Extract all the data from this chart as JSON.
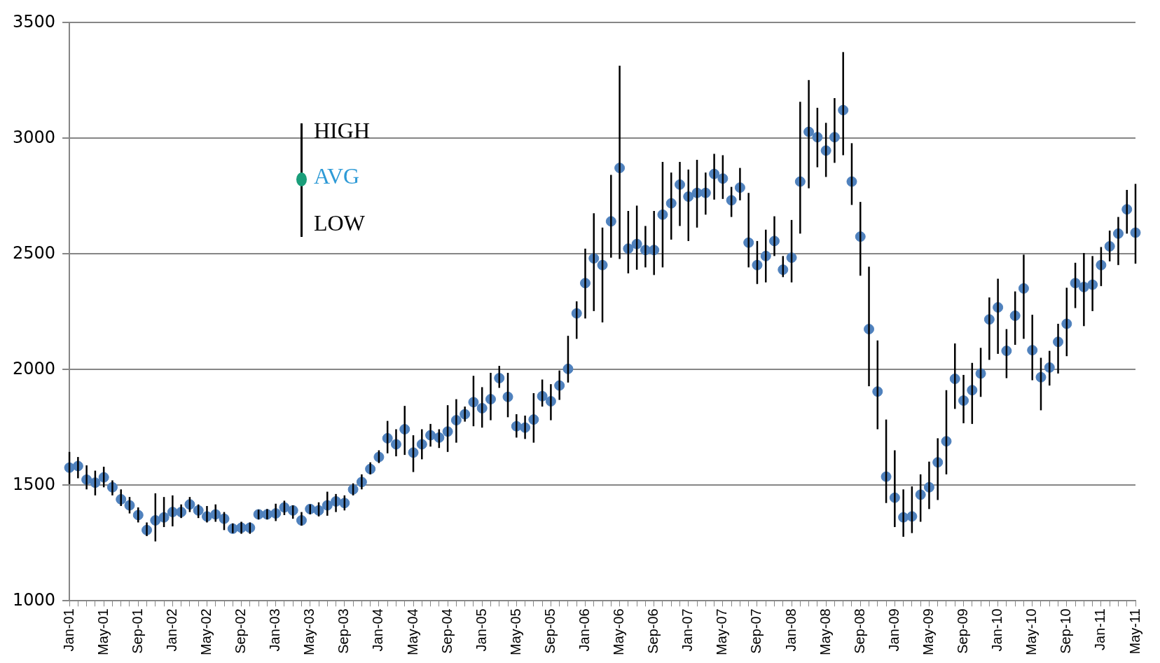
{
  "chart_data": {
    "type": "scatter",
    "ylim": [
      1000,
      3500
    ],
    "yticks": [
      1000,
      1500,
      2000,
      2500,
      3000,
      3500
    ],
    "grid": "y",
    "legend": false,
    "marker": "circle",
    "color": "#4f81bd",
    "categories": [
      "Jan-01",
      null,
      null,
      null,
      "May-01",
      null,
      null,
      null,
      "Sep-01",
      null,
      null,
      null,
      "Jan-02",
      null,
      null,
      null,
      "May-02",
      null,
      null,
      null,
      "Sep-02",
      null,
      null,
      null,
      "Jan-03",
      null,
      null,
      null,
      "May-03",
      null,
      null,
      null,
      "Sep-03",
      null,
      null,
      null,
      "Jan-04",
      null,
      null,
      null,
      "May-04",
      null,
      null,
      null,
      "Sep-04",
      null,
      null,
      null,
      "Jan-05",
      null,
      null,
      null,
      "May-05",
      null,
      null,
      null,
      "Sep-05",
      null,
      null,
      null,
      "Jan-06",
      null,
      null,
      null,
      "May-06",
      null,
      null,
      null,
      "Sep-06",
      null,
      null,
      null,
      "Jan-07",
      null,
      null,
      null,
      "May-07",
      null,
      null,
      null,
      "Sep-07",
      null,
      null,
      null,
      "Jan-08",
      null,
      null,
      null,
      "May-08",
      null,
      null,
      null,
      "Sep-08",
      null,
      null,
      null,
      "Jan-09",
      null,
      null,
      null,
      "May-09",
      null,
      null,
      null,
      "Sep-09",
      null,
      null,
      null,
      "Jan-10",
      null,
      null,
      null,
      "May-10",
      null,
      null,
      null,
      "Sep-10",
      null,
      null,
      null,
      "Jan-11",
      null,
      null,
      null,
      "May-11"
    ],
    "values": [
      1576,
      1583,
      1524,
      1511,
      1534,
      1491,
      1439,
      1413,
      1371,
      1306,
      1348,
      1361,
      1384,
      1384,
      1417,
      1391,
      1365,
      1374,
      1355,
      1312,
      1316,
      1316,
      1374,
      1374,
      1378,
      1404,
      1391,
      1348,
      1397,
      1391,
      1413,
      1430,
      1423,
      1482,
      1514,
      1570,
      1622,
      1703,
      1677,
      1742,
      1641,
      1677,
      1716,
      1706,
      1732,
      1781,
      1807,
      1859,
      1833,
      1872,
      1963,
      1882,
      1755,
      1749,
      1784,
      1885,
      1863,
      1931,
      2003,
      2243,
      2374,
      2481,
      2452,
      2641,
      2872,
      2523,
      2543,
      2517,
      2517,
      2670,
      2719,
      2800,
      2748,
      2764,
      2764,
      2846,
      2826,
      2732,
      2787,
      2549,
      2452,
      2491,
      2556,
      2432,
      2484,
      2813,
      3028,
      3005,
      2947,
      3005,
      3122,
      2813,
      2575,
      2175,
      1905,
      1537,
      1446,
      1361,
      1365,
      1459,
      1491,
      1599,
      1690,
      1960,
      1866,
      1911,
      1983,
      2217,
      2269,
      2081,
      2233,
      2351,
      2084,
      1967,
      2009,
      2120,
      2198,
      2374,
      2357,
      2367,
      2452,
      2533,
      2588,
      2693,
      2592
    ],
    "errors": [
      [
        1505,
        1644
      ],
      [
        1530,
        1622
      ],
      [
        1482,
        1586
      ],
      [
        1456,
        1563
      ],
      [
        1491,
        1580
      ],
      [
        1456,
        1521
      ],
      [
        1410,
        1482
      ],
      [
        1378,
        1449
      ],
      [
        1339,
        1404
      ],
      [
        1280,
        1339
      ],
      [
        1257,
        1465
      ],
      [
        1319,
        1449
      ],
      [
        1322,
        1456
      ],
      [
        1358,
        1417
      ],
      [
        1384,
        1449
      ],
      [
        1358,
        1417
      ],
      [
        1339,
        1410
      ],
      [
        1342,
        1417
      ],
      [
        1306,
        1384
      ],
      [
        1293,
        1335
      ],
      [
        1290,
        1342
      ],
      [
        1290,
        1339
      ],
      [
        1352,
        1394
      ],
      [
        1352,
        1397
      ],
      [
        1345,
        1420
      ],
      [
        1371,
        1433
      ],
      [
        1355,
        1413
      ],
      [
        1325,
        1384
      ],
      [
        1374,
        1417
      ],
      [
        1365,
        1426
      ],
      [
        1368,
        1472
      ],
      [
        1384,
        1462
      ],
      [
        1391,
        1456
      ],
      [
        1456,
        1508
      ],
      [
        1482,
        1547
      ],
      [
        1547,
        1599
      ],
      [
        1596,
        1651
      ],
      [
        1638,
        1778
      ],
      [
        1625,
        1742
      ],
      [
        1631,
        1843
      ],
      [
        1557,
        1716
      ],
      [
        1612,
        1742
      ],
      [
        1667,
        1765
      ],
      [
        1661,
        1742
      ],
      [
        1644,
        1846
      ],
      [
        1684,
        1872
      ],
      [
        1775,
        1840
      ],
      [
        1755,
        1973
      ],
      [
        1749,
        1924
      ],
      [
        1781,
        1986
      ],
      [
        1921,
        2016
      ],
      [
        1794,
        1986
      ],
      [
        1706,
        1807
      ],
      [
        1700,
        1801
      ],
      [
        1684,
        1898
      ],
      [
        1840,
        1957
      ],
      [
        1781,
        1937
      ],
      [
        1869,
        1996
      ],
      [
        1944,
        2146
      ],
      [
        2133,
        2295
      ],
      [
        2221,
        2523
      ],
      [
        2253,
        2676
      ],
      [
        2204,
        2614
      ],
      [
        2484,
        2842
      ],
      [
        2478,
        3314
      ],
      [
        2416,
        2686
      ],
      [
        2432,
        2709
      ],
      [
        2442,
        2621
      ],
      [
        2409,
        2686
      ],
      [
        2442,
        2898
      ],
      [
        2562,
        2852
      ],
      [
        2621,
        2898
      ],
      [
        2556,
        2865
      ],
      [
        2614,
        2907
      ],
      [
        2670,
        2852
      ],
      [
        2735,
        2933
      ],
      [
        2738,
        2927
      ],
      [
        2660,
        2790
      ],
      [
        2732,
        2872
      ],
      [
        2442,
        2764
      ],
      [
        2370,
        2556
      ],
      [
        2377,
        2605
      ],
      [
        2491,
        2663
      ],
      [
        2400,
        2491
      ],
      [
        2377,
        2647
      ],
      [
        2588,
        3158
      ],
      [
        2784,
        3252
      ],
      [
        2875,
        3132
      ],
      [
        2833,
        3067
      ],
      [
        2894,
        3174
      ],
      [
        2927,
        3373
      ],
      [
        2712,
        2979
      ],
      [
        2406,
        2725
      ],
      [
        1928,
        2445
      ],
      [
        1742,
        2126
      ],
      [
        1423,
        1784
      ],
      [
        1319,
        1651
      ],
      [
        1277,
        1482
      ],
      [
        1293,
        1495
      ],
      [
        1342,
        1547
      ],
      [
        1397,
        1602
      ],
      [
        1436,
        1703
      ],
      [
        1547,
        1911
      ],
      [
        1830,
        2113
      ],
      [
        1768,
        1977
      ],
      [
        1765,
        2029
      ],
      [
        1882,
        2094
      ],
      [
        2042,
        2312
      ],
      [
        2068,
        2393
      ],
      [
        1963,
        2175
      ],
      [
        2107,
        2338
      ],
      [
        2133,
        2497
      ],
      [
        1954,
        2237
      ],
      [
        1824,
        2051
      ],
      [
        1931,
        2081
      ],
      [
        1983,
        2198
      ],
      [
        2058,
        2354
      ],
      [
        2266,
        2462
      ],
      [
        2188,
        2504
      ],
      [
        2253,
        2491
      ],
      [
        2361,
        2530
      ],
      [
        2468,
        2601
      ],
      [
        2452,
        2660
      ],
      [
        2588,
        2777
      ],
      [
        2458,
        2803
      ]
    ],
    "annotations": [
      "HIGH",
      "AVG",
      "LOW"
    ]
  }
}
